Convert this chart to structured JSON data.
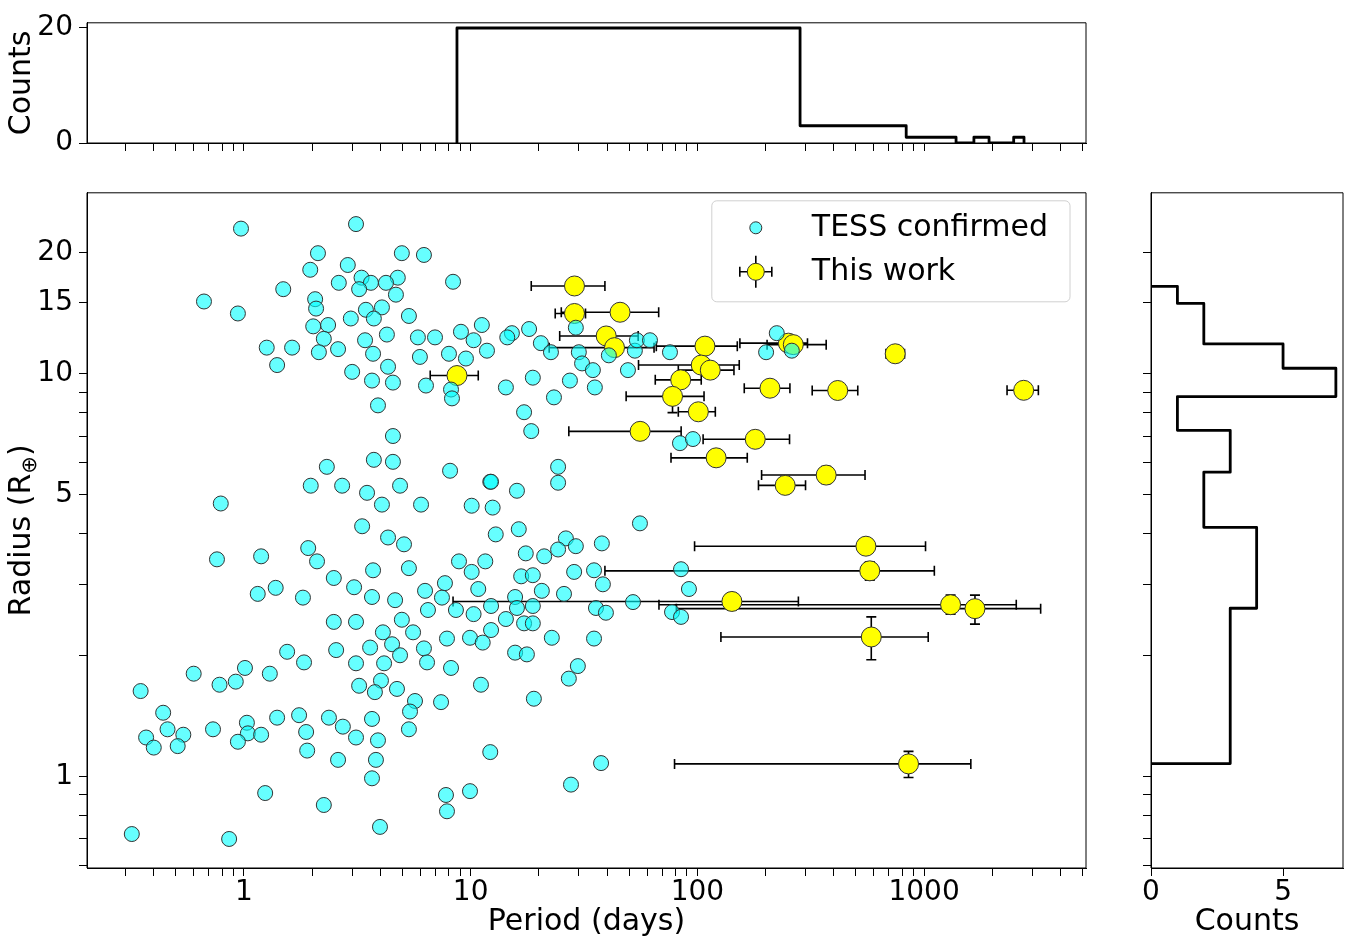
{
  "chart_data": [
    {
      "type": "histogram",
      "ylabel": "Counts",
      "log": "x",
      "tick_labels": "y",
      "color": "#000000",
      "bins": [
        8.7,
        283.8,
        558.9,
        834,
        1109,
        1384,
        1659,
        1935,
        2210,
        2485,
        2760
      ],
      "values": [
        20,
        3,
        3,
        1,
        1,
        0,
        1,
        0,
        0,
        1
      ],
      "xlim": [
        0.203,
        5180
      ],
      "ylim": [
        0,
        20.9
      ],
      "xticks": [
        {
          "value": 0.3,
          "label": null
        },
        {
          "value": 0.4,
          "label": null
        },
        {
          "value": 0.5,
          "label": null
        },
        {
          "value": 0.6,
          "label": null
        },
        {
          "value": 0.7,
          "label": null
        },
        {
          "value": 0.8,
          "label": null
        },
        {
          "value": 0.9,
          "label": null
        },
        {
          "value": 1,
          "label": null
        },
        {
          "value": 2,
          "label": null
        },
        {
          "value": 3,
          "label": null
        },
        {
          "value": 4,
          "label": null
        },
        {
          "value": 5,
          "label": null
        },
        {
          "value": 6,
          "label": null
        },
        {
          "value": 7,
          "label": null
        },
        {
          "value": 8,
          "label": null
        },
        {
          "value": 9,
          "label": null
        },
        {
          "value": 10,
          "label": null
        },
        {
          "value": 20,
          "label": null
        },
        {
          "value": 30,
          "label": null
        },
        {
          "value": 40,
          "label": null
        },
        {
          "value": 50,
          "label": null
        },
        {
          "value": 60,
          "label": null
        },
        {
          "value": 70,
          "label": null
        },
        {
          "value": 80,
          "label": null
        },
        {
          "value": 90,
          "label": null
        },
        {
          "value": 100,
          "label": null
        },
        {
          "value": 200,
          "label": null
        },
        {
          "value": 300,
          "label": null
        },
        {
          "value": 400,
          "label": null
        },
        {
          "value": 500,
          "label": null
        },
        {
          "value": 600,
          "label": null
        },
        {
          "value": 700,
          "label": null
        },
        {
          "value": 800,
          "label": null
        },
        {
          "value": 900,
          "label": null
        },
        {
          "value": 1000,
          "label": null
        },
        {
          "value": 2000,
          "label": null
        },
        {
          "value": 3000,
          "label": null
        },
        {
          "value": 4000,
          "label": null
        },
        {
          "value": 5000,
          "label": null
        }
      ],
      "yticks": [
        0,
        20
      ]
    },
    {
      "type": "scatter",
      "xlabel": "Period (days)",
      "ylabel": "Radius (R$_{⊕}$)",
      "log": "xy",
      "legend": "top right",
      "marker": "circle",
      "xlim": [
        0.203,
        5180
      ],
      "ylim": [
        0.593,
        28.1
      ],
      "xticks": [
        {
          "value": 0.3,
          "label": null
        },
        {
          "value": 0.4,
          "label": null
        },
        {
          "value": 0.5,
          "label": null
        },
        {
          "value": 0.6,
          "label": null
        },
        {
          "value": 0.7,
          "label": null
        },
        {
          "value": 0.8,
          "label": null
        },
        {
          "value": 0.9,
          "label": null
        },
        1,
        {
          "value": 2,
          "label": null
        },
        {
          "value": 3,
          "label": null
        },
        {
          "value": 4,
          "label": null
        },
        {
          "value": 5,
          "label": null
        },
        {
          "value": 6,
          "label": null
        },
        {
          "value": 7,
          "label": null
        },
        {
          "value": 8,
          "label": null
        },
        {
          "value": 9,
          "label": null
        },
        10,
        {
          "value": 20,
          "label": null
        },
        {
          "value": 30,
          "label": null
        },
        {
          "value": 40,
          "label": null
        },
        {
          "value": 50,
          "label": null
        },
        {
          "value": 60,
          "label": null
        },
        {
          "value": 70,
          "label": null
        },
        {
          "value": 80,
          "label": null
        },
        {
          "value": 90,
          "label": null
        },
        100,
        {
          "value": 200,
          "label": null
        },
        {
          "value": 300,
          "label": null
        },
        {
          "value": 400,
          "label": null
        },
        {
          "value": 500,
          "label": null
        },
        {
          "value": 600,
          "label": null
        },
        {
          "value": 700,
          "label": null
        },
        {
          "value": 800,
          "label": null
        },
        {
          "value": 900,
          "label": null
        },
        1000,
        {
          "value": 2000,
          "label": null
        },
        {
          "value": 3000,
          "label": null
        },
        {
          "value": 4000,
          "label": null
        },
        {
          "value": 5000,
          "label": null
        }
      ],
      "yticks": [
        {
          "value": 0.6,
          "label": null
        },
        {
          "value": 0.7,
          "label": null
        },
        {
          "value": 0.8,
          "label": null
        },
        {
          "value": 0.9,
          "label": null
        },
        1,
        {
          "value": 2,
          "label": null
        },
        {
          "value": 3,
          "label": null
        },
        {
          "value": 4,
          "label": null
        },
        5,
        {
          "value": 6,
          "label": null
        },
        {
          "value": 7,
          "label": null
        },
        {
          "value": 8,
          "label": null
        },
        {
          "value": 9,
          "label": null
        },
        10,
        15,
        20
      ],
      "series": [
        {
          "name": "TESS confirmed",
          "color": "#00ffff",
          "x": [
            0.97,
            3.12,
            2.12,
            4.97,
            6.22,
            2.87,
            1.96,
            4.77,
            3.3,
            2.62,
            3.63,
            4.23,
            3.22,
            1.49,
            8.36,
            0.666,
            2.06,
            4.68,
            2.08,
            3.45,
            4.06,
            0.94,
            5.34,
            2.96,
            3.74,
            2.02,
            2.35,
            4.27,
            2.25,
            3.42,
            5.85,
            6.96,
            9.06,
            11.2,
            10.3,
            11.8,
            1.26,
            1.63,
            2.14,
            2.6,
            3.71,
            8.02,
            5.97,
            9.53,
            1.4,
            3.0,
            4.32,
            3.67,
            4.54,
            6.35,
            8.19,
            8.27,
            3.9,
            4.54,
            3.74,
            4.54,
            2.32,
            8.11,
            12.2,
            1.97,
            2.71,
            3.49,
            4.88,
            0.79,
            4.06,
            6.04,
            10.1,
            12.5,
            3.32,
            4.32,
            5.08,
            1.92,
            2.1,
            0.76,
            1.19,
            2.49,
            3.71,
            5.34,
            3.06,
            1.15,
            1.38,
            1.82,
            3.67,
            4.64,
            6.29,
            7.7,
            8.88,
            11.6,
            10.1,
            10.8,
            7.47,
            6.48,
            8.61,
            10.3,
            2.49,
            3.12,
            4.97,
            5.57,
            4.1,
            12.3,
            7.86,
            9.93,
            4.5,
            3.6,
            2.55,
            6.22,
            11.3,
            4.88,
            1.55,
            1.84,
            3.12,
            4.15,
            6.42,
            8.19,
            1.3,
            1.01,
            0.92,
            0.78,
            0.6,
            0.35,
            3.22,
            4.02,
            3.78,
            4.73,
            11.1,
            5.68,
            7.4,
            5.4,
            5.34,
            3.67,
            2.37,
            1.75,
            1.4,
            0.44,
            0.46,
            0.54,
            0.37,
            0.4,
            0.51,
            0.73,
            1.03,
            1.04,
            0.94,
            1.19,
            1.88,
            1.9,
            2.73,
            3.12,
            3.9,
            2.6,
            3.82,
            3.67,
            12.2,
            1.24,
            2.25,
            7.78,
            7.86,
            9.93,
            3.98,
            0.32,
            0.86,
            15.2,
            18.1,
            14.5,
            20.4,
            22.6,
            29.1,
            30.0,
            31.0,
            34.6,
            40.7,
            53.0,
            54.1,
            61.8,
            75.7,
            49.4,
            18.8,
            27.4,
            35.3,
            14.3,
            23.3,
            17.2,
            18.5,
            224,
            201,
            261,
            83.8,
            95.6,
            24.3,
            24.3,
            12.3,
            16.0,
            55.8,
            16.3,
            12.9,
            26.3,
            29.1,
            37.9,
            24.3,
            21.1,
            17.5,
            28.6,
            35.0,
            84.7,
            16.7,
            18.8,
            38.3,
            20.6,
            25.8,
            91.8,
            15.7,
            52.0,
            12.3,
            16.0,
            18.8,
            35.7,
            39.5,
            77.3,
            84.7,
            14.3,
            17.2,
            18.8,
            22.8,
            35.0,
            15.7,
            17.7,
            29.7,
            27.1,
            19.0,
            37.6,
            27.7
          ],
          "values": [
            22.9,
            23.5,
            19.9,
            19.9,
            19.7,
            18.6,
            18.1,
            17.3,
            17.3,
            16.8,
            16.8,
            16.8,
            16.2,
            16.2,
            16.9,
            15.1,
            15.3,
            15.7,
            14.5,
            14.4,
            14.6,
            14.1,
            13.9,
            13.7,
            13.7,
            13.1,
            13.2,
            12.5,
            12.2,
            12.1,
            12.3,
            12.3,
            12.7,
            13.2,
            12.1,
            11.4,
            11.6,
            11.6,
            11.3,
            11.5,
            11.2,
            11.2,
            11.0,
            10.9,
            10.5,
            10.1,
            10.4,
            9.61,
            9.5,
            9.34,
            9.13,
            8.68,
            8.34,
            7.0,
            6.11,
            6.04,
            5.87,
            5.74,
            5.39,
            5.27,
            5.27,
            5.06,
            5.27,
            4.76,
            4.73,
            4.73,
            4.7,
            4.65,
            4.18,
            3.92,
            3.77,
            3.69,
            3.42,
            3.46,
            3.52,
            3.11,
            3.25,
            3.29,
            2.95,
            2.84,
            2.94,
            2.78,
            2.79,
            2.74,
            2.89,
            3.02,
            3.42,
            3.42,
            3.22,
            2.92,
            2.78,
            2.59,
            2.59,
            2.53,
            2.42,
            2.42,
            2.45,
            2.28,
            2.28,
            2.31,
            2.2,
            2.21,
            2.13,
            2.09,
            2.06,
            2.08,
            2.15,
            2.0,
            2.04,
            1.92,
            1.91,
            1.91,
            1.92,
            1.86,
            1.8,
            1.86,
            1.72,
            1.69,
            1.8,
            1.63,
            1.68,
            1.73,
            1.62,
            1.65,
            1.69,
            1.54,
            1.53,
            1.45,
            1.31,
            1.39,
            1.4,
            1.42,
            1.4,
            1.44,
            1.31,
            1.27,
            1.25,
            1.18,
            1.19,
            1.31,
            1.36,
            1.28,
            1.22,
            1.27,
            1.29,
            1.16,
            1.33,
            1.25,
            1.23,
            1.1,
            1.1,
            0.99,
            1.15,
            0.91,
            0.85,
            0.9,
            0.82,
            0.92,
            0.75,
            0.72,
            0.7,
            12.6,
            12.9,
            12.3,
            11.9,
            11.3,
            13.0,
            11.3,
            10.6,
            10.2,
            11.1,
            11.4,
            12.1,
            12.1,
            11.3,
            10.2,
            9.77,
            9.61,
            9.24,
            9.24,
            8.73,
            8.02,
            7.2,
            12.6,
            11.3,
            11.4,
            6.72,
            6.88,
            5.87,
            5.36,
            5.39,
            5.12,
            4.25,
            4.11,
            3.99,
            3.9,
            3.73,
            3.79,
            3.66,
            3.52,
            3.58,
            3.22,
            3.25,
            3.27,
            3.14,
            3.16,
            3.0,
            2.89,
            2.84,
            2.92,
            2.79,
            2.71,
            2.65,
            2.62,
            2.65,
            2.62,
            2.55,
            2.56,
            2.49,
            2.46,
            2.4,
            2.4,
            2.21,
            2.2,
            2.03,
            2.01,
            1.88,
            1.75,
            1.56,
            1.08,
            0.955
          ]
        },
        {
          "name": "This work",
          "color": "#ffff00",
          "x": [
            28.7,
            28.7,
            45.6,
            39.6,
            43.1,
            108,
            252,
            265,
            746,
            104,
            114,
            84.4,
            209,
            416,
            2750,
            77.7,
            101,
            55.9,
            180,
            121,
            370,
            244,
            8.7,
            554,
            576,
            142,
            1309,
            1677,
            585,
            854
          ],
          "values": [
            16.5,
            14.1,
            14.2,
            12.4,
            11.6,
            11.7,
            11.9,
            11.8,
            11.2,
            10.5,
            10.2,
            9.65,
            9.2,
            9.08,
            9.09,
            8.78,
            8.04,
            7.19,
            6.87,
            6.18,
            5.6,
            5.28,
            9.89,
            3.73,
            3.24,
            2.72,
            2.67,
            2.61,
            2.22,
            1.075
          ],
          "xerrors": [
            [
              18.5,
              39.1
            ],
            [
              23.6,
              32.1
            ],
            [
              25.1,
              67.5
            ],
            [
              24.7,
              54.8
            ],
            [
              22.2,
              64.4
            ],
            [
              65.9,
              150
            ],
            [
              154,
              306
            ],
            [
              203,
              370
            ],
            [
              679,
              820
            ],
            [
              55.0,
              153
            ],
            [
              82.4,
              145
            ],
            [
              65.2,
              104
            ],
            [
              161,
              256
            ],
            [
              321,
              510
            ],
            [
              2323,
              3193
            ],
            [
              48.5,
              107
            ],
            [
              82.4,
              120
            ],
            [
              27.1,
              84.8
            ],
            [
              106,
              255
            ],
            [
              76.5,
              166
            ],
            [
              192,
              549
            ],
            [
              186,
              300
            ],
            [
              6.63,
              10.8
            ],
            [
              97.2,
              1015
            ],
            [
              39.1,
              1110
            ],
            [
              8.36,
              279
            ],
            [
              67.7,
              2551
            ],
            [
              80.8,
              3268
            ],
            [
              127,
              1043
            ],
            [
              79.3,
              1608
            ]
          ],
          "errors": [
            null,
            null,
            null,
            null,
            null,
            null,
            null,
            null,
            null,
            null,
            null,
            null,
            null,
            null,
            null,
            [
              8.0,
              9.1
            ],
            null,
            null,
            null,
            null,
            [
              5.34,
              5.88
            ],
            null,
            null,
            null,
            [
              3.07,
              3.41
            ],
            [
              2.59,
              2.85
            ],
            [
              2.53,
              2.82
            ],
            [
              2.39,
              2.82
            ],
            [
              1.95,
              2.49
            ],
            [
              0.995,
              1.155
            ]
          ]
        }
      ]
    },
    {
      "type": "histogram",
      "orientation": "horizontal",
      "xlabel": "Counts",
      "log": "y",
      "tick_labels": "x",
      "color": "#000000",
      "bins": [
        1.077,
        2.616,
        4.155,
        5.694,
        7.233,
        8.772,
        10.31,
        11.85,
        13.39,
        14.93,
        16.47
      ],
      "values": [
        3,
        4,
        2,
        3,
        1,
        7,
        5,
        2,
        2,
        1
      ],
      "xlim": [
        0,
        7.27
      ],
      "ylim": [
        0.593,
        28.1
      ],
      "xticks": [
        0,
        5
      ],
      "yticks": [
        {
          "value": 0.6,
          "label": null
        },
        {
          "value": 0.7,
          "label": null
        },
        {
          "value": 0.8,
          "label": null
        },
        {
          "value": 0.9,
          "label": null
        },
        {
          "value": 1,
          "label": null
        },
        {
          "value": 2,
          "label": null
        },
        {
          "value": 3,
          "label": null
        },
        {
          "value": 4,
          "label": null
        },
        {
          "value": 5,
          "label": null
        },
        {
          "value": 6,
          "label": null
        },
        {
          "value": 7,
          "label": null
        },
        {
          "value": 8,
          "label": null
        },
        {
          "value": 9,
          "label": null
        },
        {
          "value": 10,
          "label": null
        },
        {
          "value": 15,
          "label": null
        },
        {
          "value": 20,
          "label": null
        }
      ]
    }
  ]
}
